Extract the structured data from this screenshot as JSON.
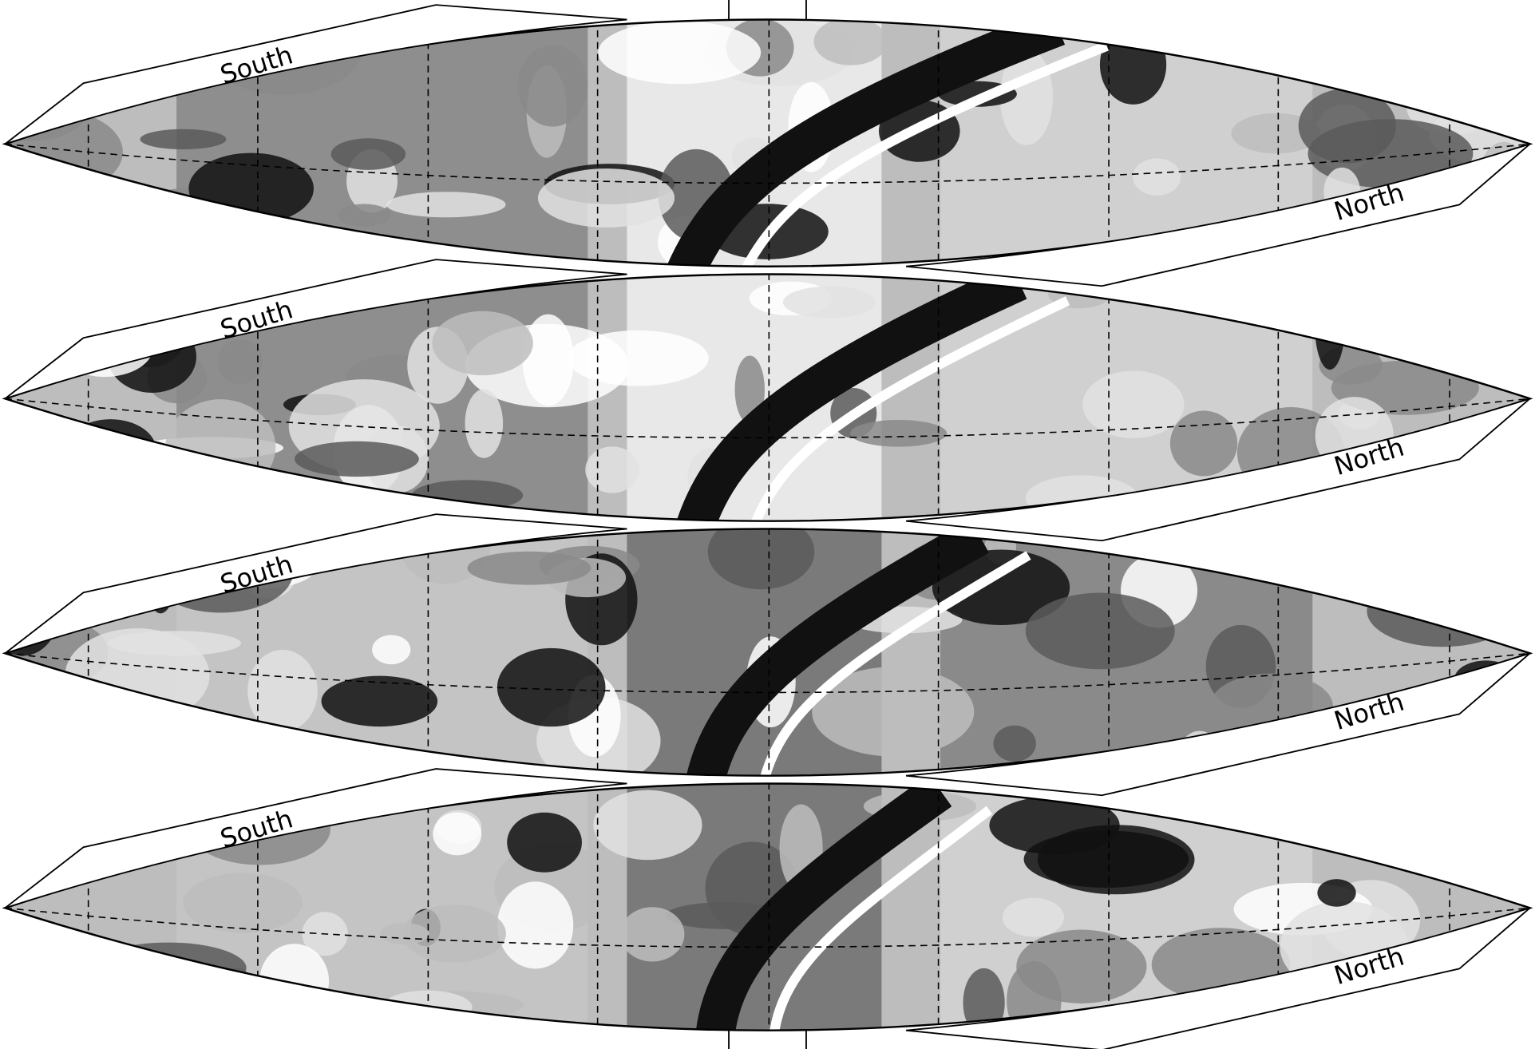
{
  "panels": [
    {
      "south_label": "South",
      "north_label": "North"
    },
    {
      "south_label": "South",
      "north_label": "North"
    },
    {
      "south_label": "South",
      "north_label": "North"
    },
    {
      "south_label": "South",
      "north_label": "North"
    }
  ]
}
